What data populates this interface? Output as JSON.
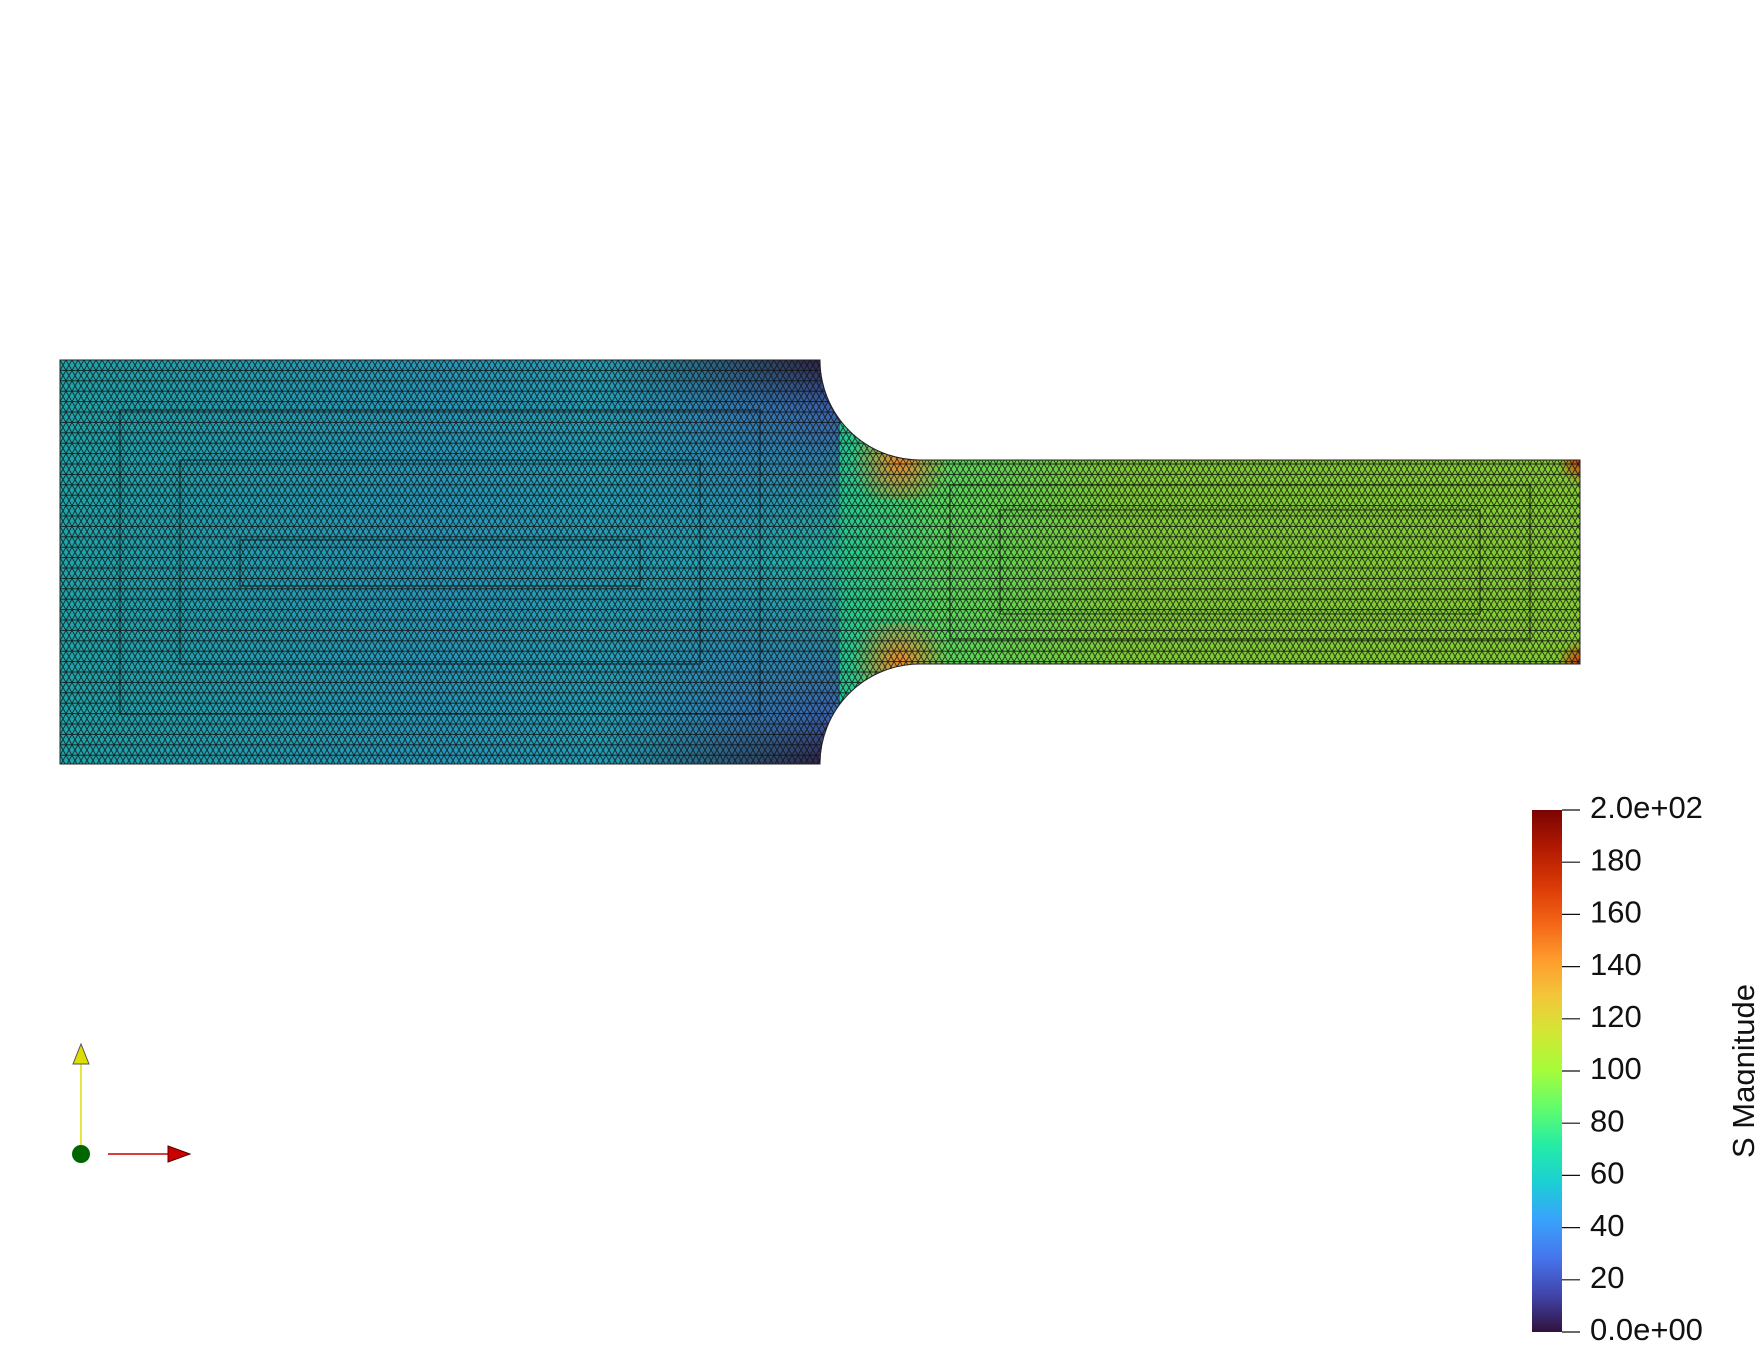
{
  "colorbar": {
    "title": "S Magnitude",
    "range": [
      0,
      200
    ],
    "tick_labels": [
      "2.0e+02",
      "180",
      "160",
      "140",
      "120",
      "100",
      "80",
      "60",
      "40",
      "20",
      "0.0e+00"
    ],
    "tick_values": [
      200,
      180,
      160,
      140,
      120,
      100,
      80,
      60,
      40,
      20,
      0
    ],
    "colormap": [
      "#30123b",
      "#4145ab",
      "#4675ed",
      "#39a2fc",
      "#1bcfd4",
      "#24eca6",
      "#61fc6c",
      "#a4fc3b",
      "#d1e834",
      "#f3c63a",
      "#fe9b2d",
      "#f36315",
      "#d93806",
      "#b11901",
      "#7a0402"
    ]
  },
  "axes_triad": {
    "x_color": "#cc0000",
    "y_color": "#dddd00",
    "z_color": "#006600"
  },
  "model": {
    "field": "S Magnitude",
    "mesh_color": "#1a1a1a"
  }
}
